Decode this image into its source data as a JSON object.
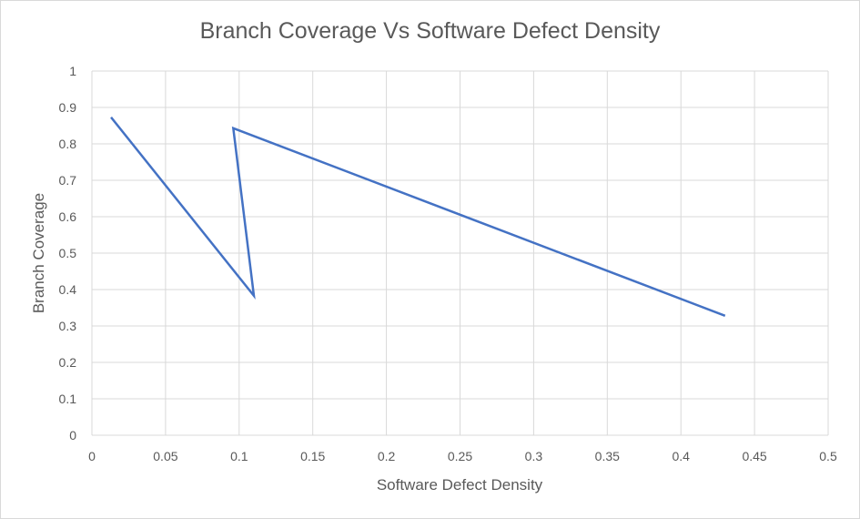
{
  "chart_data": {
    "type": "line",
    "title": "Branch Coverage Vs Software Defect Density",
    "xlabel": "Software Defect Density",
    "ylabel": "Branch Coverage",
    "xlim": [
      0,
      0.5
    ],
    "ylim": [
      0,
      1
    ],
    "x_ticks": [
      "0",
      "0.05",
      "0.1",
      "0.15",
      "0.2",
      "0.25",
      "0.3",
      "0.35",
      "0.4",
      "0.45",
      "0.5"
    ],
    "y_ticks": [
      "0",
      "0.1",
      "0.2",
      "0.3",
      "0.4",
      "0.5",
      "0.6",
      "0.7",
      "0.8",
      "0.9",
      "1"
    ],
    "grid": true,
    "legend": "none",
    "series": [
      {
        "color": "#4472c4",
        "points": [
          {
            "x": 0.013,
            "y": 0.873
          },
          {
            "x": 0.11,
            "y": 0.383
          },
          {
            "x": 0.096,
            "y": 0.843
          },
          {
            "x": 0.43,
            "y": 0.328
          }
        ]
      }
    ],
    "gridline_color": "#d9d9d9",
    "text_color": "#595959"
  }
}
